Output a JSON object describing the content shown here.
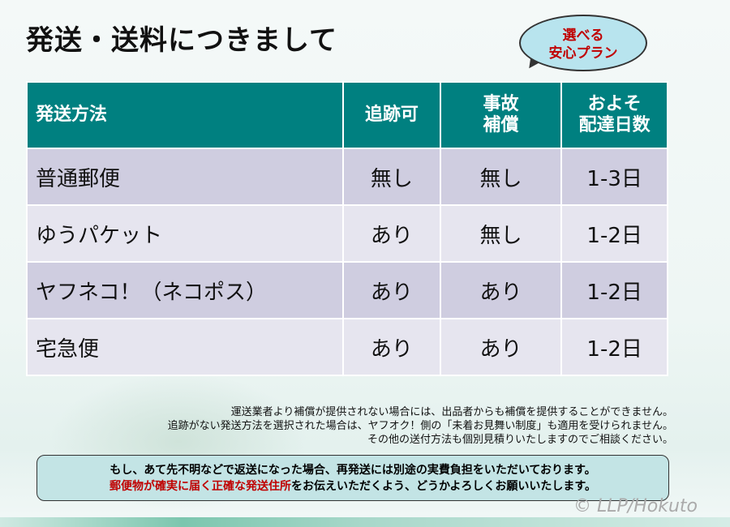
{
  "title": "発送・送料につきまして",
  "badge": {
    "line1": "選べる",
    "line2": "安心プラン"
  },
  "table": {
    "headers": [
      "発送方法",
      "追跡可",
      "事故\n補償",
      "およそ\n配達日数"
    ],
    "header_lines": {
      "h3a": "事故",
      "h3b": "補償",
      "h4a": "およそ",
      "h4b": "配達日数"
    },
    "rows": [
      [
        "普通郵便",
        "無し",
        "無し",
        "1-3日"
      ],
      [
        "ゆうパケット",
        "あり",
        "無し",
        "1-2日"
      ],
      [
        "ヤフネコ！（ネコポス）",
        "あり",
        "あり",
        "1-2日"
      ],
      [
        "宅急便",
        "あり",
        "あり",
        "1-2日"
      ]
    ]
  },
  "notes": [
    "運送業者より補償が提供されない場合には、出品者からも補償を提供することができません。",
    "追跡がない発送方法を選択された場合は、ヤフオク！側の「未着お見舞い制度」も適用を受けられません。",
    "その他の送付方法も個別見積りいたしますのでご相談ください。"
  ],
  "notice": {
    "line1": "もし、あて先不明などで返送になった場合、再発送には別途の実費負担をいただいております。",
    "line2_red": "郵便物が確実に届く正確な発送住所",
    "line2_rest": "をお伝えいただくよう、どうかよろしくお願いいたします。"
  },
  "copyright": "© LLP/Hokuto",
  "colors": {
    "header": "#008080",
    "accent_red": "#c00000"
  }
}
